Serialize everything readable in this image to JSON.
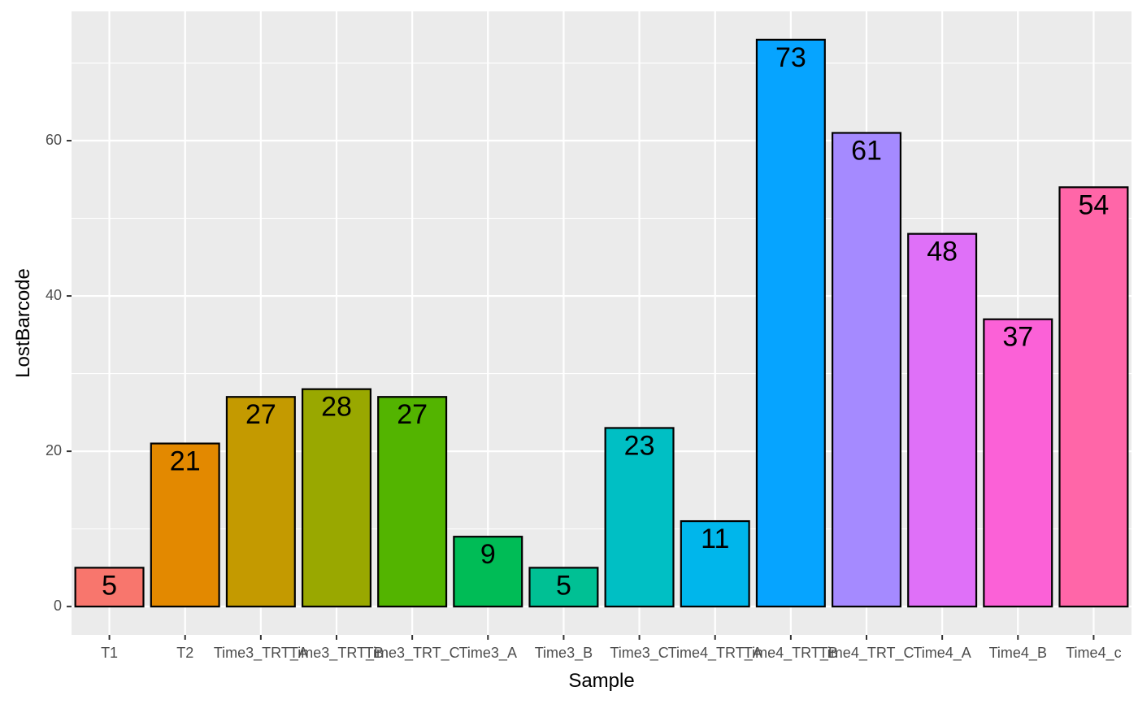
{
  "chart_data": {
    "type": "bar",
    "xlabel": "Sample",
    "ylabel": "LostBarcode",
    "ylim": [
      -3.65,
      76.65
    ],
    "yticks": [
      0,
      20,
      40,
      60
    ],
    "grid": true,
    "legend": "none",
    "panel_background": "#EBEBEB",
    "bar_outline": "#000000",
    "categories": [
      "T1",
      "T2",
      "Time3_TRT_A",
      "Time3_TRT_B",
      "Time3_TRT_C",
      "Time3_A",
      "Time3_B",
      "Time3_C",
      "Time4_TRT_A",
      "Time4_TRT_B",
      "Time4_TRT_C",
      "Time4_A",
      "Time4_B",
      "Time4_c"
    ],
    "values": [
      5,
      21,
      27,
      28,
      27,
      9,
      5,
      23,
      11,
      73,
      61,
      48,
      37,
      54
    ],
    "data_labels": [
      "5",
      "21",
      "27",
      "28",
      "27",
      "9",
      "5",
      "23",
      "11",
      "73",
      "61",
      "48",
      "37",
      "54"
    ],
    "colors": [
      "#F8766D",
      "#E38900",
      "#C49A00",
      "#99A800",
      "#53B400",
      "#00BC56",
      "#00C094",
      "#00BFC4",
      "#00B6EB",
      "#06A4FF",
      "#A58AFF",
      "#DF70F8",
      "#FB61D7",
      "#FF66A8"
    ]
  }
}
